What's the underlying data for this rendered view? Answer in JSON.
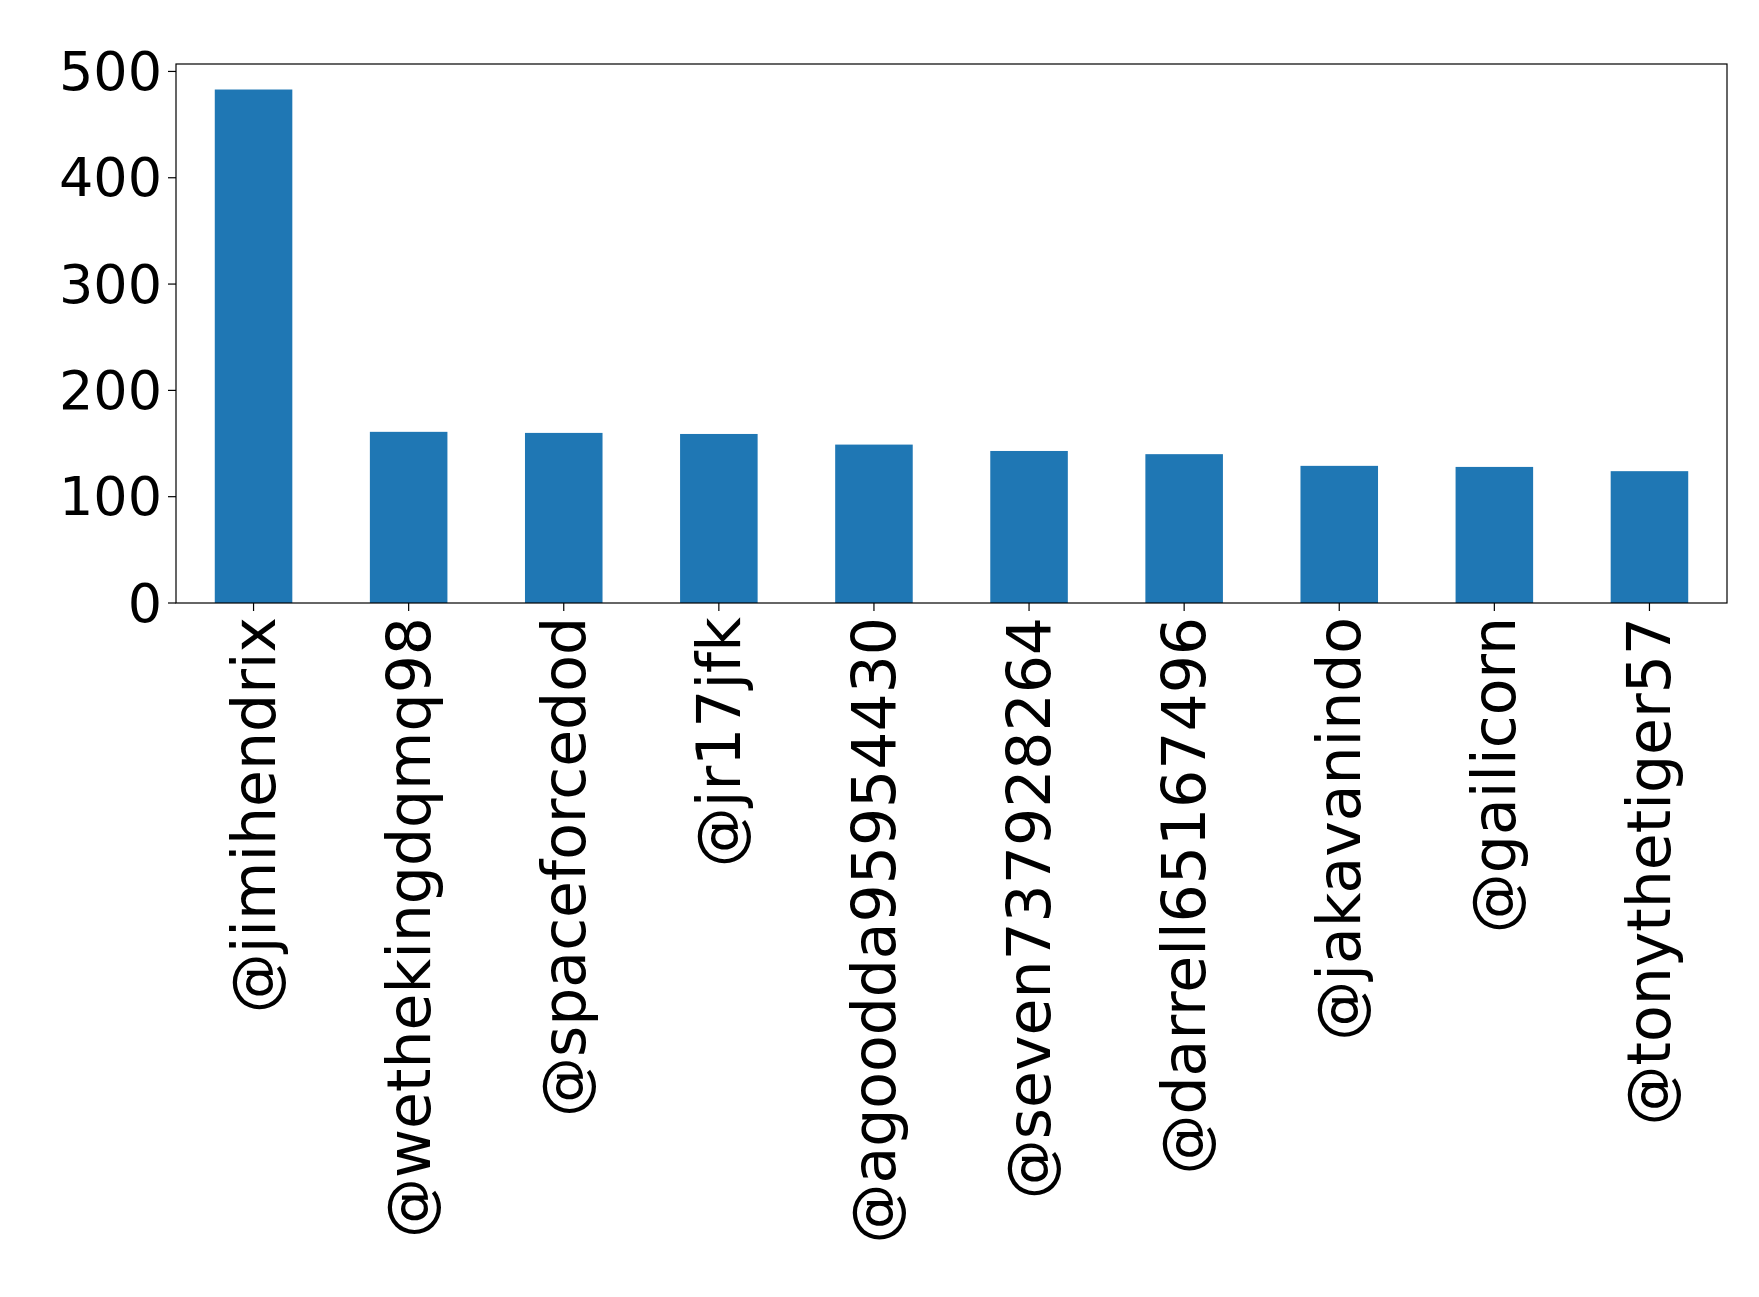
{
  "chart_data": {
    "type": "bar",
    "categories": [
      "@jimihendrix",
      "@wethekingdqmq98",
      "@spaceforcedod",
      "@jr17jfk",
      "@agoodda95954430",
      "@seven737928264",
      "@darrell65167496",
      "@jakavanindo",
      "@gailicorn",
      "@tonythetiger57"
    ],
    "values": [
      483,
      161,
      160,
      159,
      149,
      143,
      140,
      129,
      128,
      124
    ],
    "color": "#1f77b4",
    "ylim": [
      0,
      507
    ],
    "yticks": [
      0,
      100,
      200,
      300,
      400,
      500
    ]
  }
}
